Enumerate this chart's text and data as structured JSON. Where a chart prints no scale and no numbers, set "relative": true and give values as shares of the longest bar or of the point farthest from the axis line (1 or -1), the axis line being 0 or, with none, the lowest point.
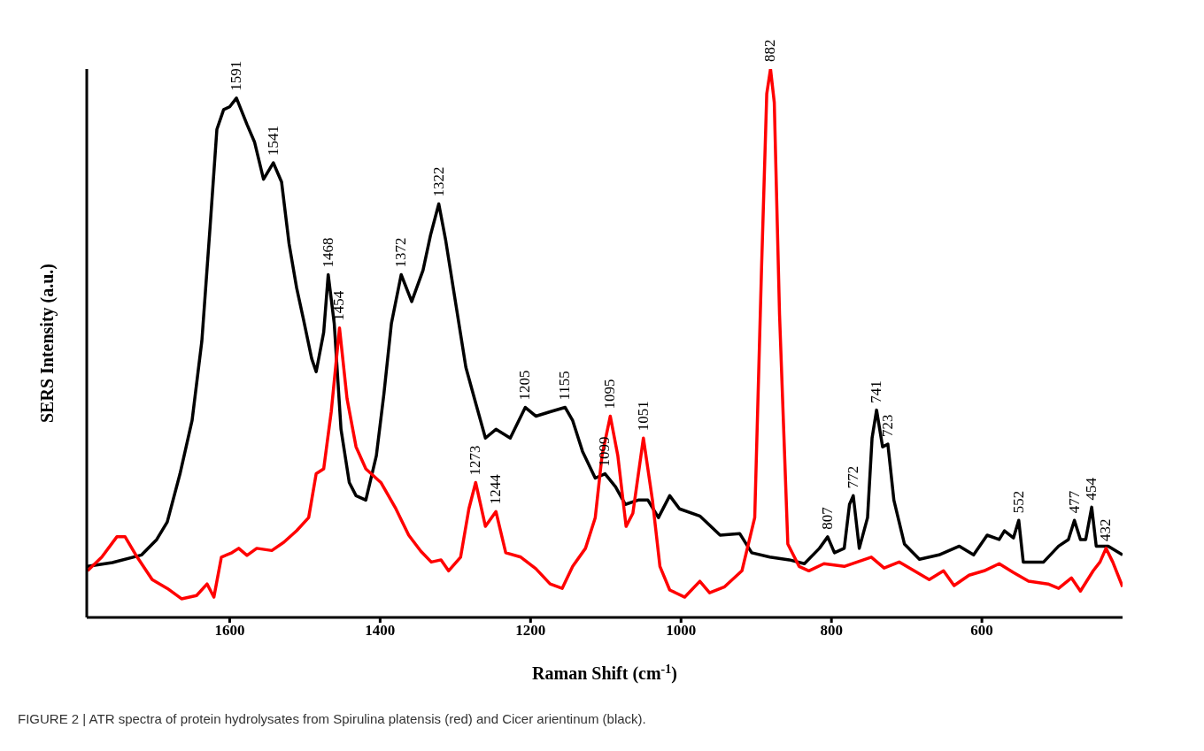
{
  "chart_data": {
    "type": "line",
    "relative": true,
    "xlabel": "Raman Shift (cm$^{-1}$)",
    "ylabel": "SERS Intensity (a.u.)",
    "xlim": [
      1790,
      413
    ],
    "xticks": [
      1600,
      1400,
      1200,
      1000,
      800,
      600
    ],
    "marker": "none",
    "line_style": "solid",
    "series": [
      {
        "color": "#000000",
        "x": [
          1789,
          1756,
          1717,
          1697,
          1683,
          1666,
          1650,
          1637,
          1626,
          1617,
          1608,
          1600,
          1591,
          1577,
          1567,
          1555,
          1542,
          1531,
          1521,
          1511,
          1502,
          1491,
          1485,
          1475,
          1469,
          1461,
          1452,
          1441,
          1432,
          1419,
          1405,
          1395,
          1385,
          1372,
          1358,
          1343,
          1333,
          1322,
          1313,
          1299,
          1286,
          1273,
          1260,
          1246,
          1227,
          1207,
          1193,
          1174,
          1154,
          1144,
          1131,
          1114,
          1101,
          1087,
          1074,
          1057,
          1044,
          1030,
          1015,
          1002,
          975,
          948,
          922,
          906,
          882,
          856,
          836,
          816,
          805,
          796,
          783,
          776,
          771,
          763,
          752,
          746,
          740,
          732,
          725,
          717,
          703,
          683,
          657,
          630,
          611,
          593,
          577,
          570,
          558,
          551,
          545,
          518,
          498,
          485,
          477,
          469,
          462,
          454,
          448,
          432,
          413
        ],
        "values": [
          0.093,
          0.1,
          0.114,
          0.142,
          0.174,
          0.262,
          0.359,
          0.504,
          0.713,
          0.89,
          0.926,
          0.931,
          0.947,
          0.899,
          0.867,
          0.799,
          0.829,
          0.794,
          0.681,
          0.601,
          0.544,
          0.472,
          0.448,
          0.52,
          0.625,
          0.536,
          0.343,
          0.246,
          0.222,
          0.214,
          0.295,
          0.407,
          0.536,
          0.625,
          0.576,
          0.633,
          0.697,
          0.754,
          0.689,
          0.568,
          0.456,
          0.391,
          0.327,
          0.343,
          0.327,
          0.383,
          0.367,
          0.375,
          0.383,
          0.359,
          0.303,
          0.254,
          0.262,
          0.238,
          0.206,
          0.214,
          0.214,
          0.182,
          0.222,
          0.198,
          0.185,
          0.15,
          0.153,
          0.118,
          0.11,
          0.105,
          0.098,
          0.126,
          0.147,
          0.118,
          0.126,
          0.206,
          0.222,
          0.126,
          0.182,
          0.327,
          0.378,
          0.311,
          0.316,
          0.214,
          0.134,
          0.106,
          0.114,
          0.13,
          0.114,
          0.15,
          0.142,
          0.158,
          0.145,
          0.177,
          0.101,
          0.101,
          0.13,
          0.142,
          0.177,
          0.142,
          0.142,
          0.201,
          0.13,
          0.13,
          0.114
        ]
      },
      {
        "color": "#ff0000",
        "x": [
          1789,
          1770,
          1750,
          1739,
          1723,
          1703,
          1683,
          1664,
          1644,
          1630,
          1621,
          1611,
          1597,
          1588,
          1577,
          1564,
          1544,
          1528,
          1511,
          1495,
          1485,
          1475,
          1465,
          1454,
          1444,
          1432,
          1419,
          1399,
          1379,
          1362,
          1346,
          1332,
          1319,
          1309,
          1293,
          1282,
          1273,
          1260,
          1246,
          1233,
          1213,
          1193,
          1174,
          1158,
          1144,
          1127,
          1114,
          1105,
          1094,
          1084,
          1073,
          1064,
          1050,
          1038,
          1028,
          1015,
          995,
          975,
          962,
          942,
          919,
          902,
          893,
          886,
          881,
          876,
          869,
          858,
          843,
          830,
          810,
          783,
          747,
          730,
          710,
          690,
          670,
          651,
          637,
          617,
          597,
          577,
          558,
          538,
          512,
          498,
          481,
          469,
          452,
          443,
          435,
          426,
          413
        ],
        "values": [
          0.085,
          0.11,
          0.147,
          0.147,
          0.11,
          0.069,
          0.053,
          0.034,
          0.04,
          0.061,
          0.037,
          0.11,
          0.118,
          0.126,
          0.113,
          0.126,
          0.122,
          0.137,
          0.158,
          0.182,
          0.262,
          0.271,
          0.375,
          0.528,
          0.399,
          0.311,
          0.271,
          0.246,
          0.198,
          0.15,
          0.121,
          0.101,
          0.105,
          0.085,
          0.11,
          0.198,
          0.246,
          0.166,
          0.193,
          0.118,
          0.11,
          0.089,
          0.061,
          0.053,
          0.093,
          0.126,
          0.182,
          0.295,
          0.367,
          0.295,
          0.166,
          0.19,
          0.327,
          0.214,
          0.093,
          0.05,
          0.037,
          0.066,
          0.045,
          0.056,
          0.085,
          0.182,
          0.633,
          0.955,
          1.0,
          0.939,
          0.552,
          0.134,
          0.093,
          0.085,
          0.098,
          0.093,
          0.11,
          0.09,
          0.101,
          0.085,
          0.069,
          0.085,
          0.058,
          0.077,
          0.085,
          0.098,
          0.082,
          0.066,
          0.061,
          0.053,
          0.072,
          0.048,
          0.085,
          0.101,
          0.126,
          0.101,
          0.056
        ]
      }
    ],
    "annotations": [
      {
        "text": "1591",
        "x": 1591,
        "y": 0.947
      },
      {
        "text": "1541",
        "x": 1542,
        "y": 0.829
      },
      {
        "text": "1468",
        "x": 1469,
        "y": 0.625
      },
      {
        "text": "1454",
        "x": 1454,
        "y": 0.528
      },
      {
        "text": "1372",
        "x": 1372,
        "y": 0.625
      },
      {
        "text": "1322",
        "x": 1322,
        "y": 0.754
      },
      {
        "text": "1273",
        "x": 1273,
        "y": 0.246
      },
      {
        "text": "1244",
        "x": 1246,
        "y": 0.193
      },
      {
        "text": "1205",
        "x": 1207,
        "y": 0.383
      },
      {
        "text": "1155",
        "x": 1154,
        "y": 0.383
      },
      {
        "text": "1099",
        "x": 1101,
        "y": 0.262
      },
      {
        "text": "1095",
        "x": 1094,
        "y": 0.367
      },
      {
        "text": "1051",
        "x": 1050,
        "y": 0.327
      },
      {
        "text": "882",
        "x": 881,
        "y": 1.0
      },
      {
        "text": "807",
        "x": 805,
        "y": 0.147
      },
      {
        "text": "772",
        "x": 771,
        "y": 0.222
      },
      {
        "text": "741",
        "x": 740,
        "y": 0.378
      },
      {
        "text": "723",
        "x": 725,
        "y": 0.316
      },
      {
        "text": "552",
        "x": 551,
        "y": 0.177
      },
      {
        "text": "477",
        "x": 477,
        "y": 0.177
      },
      {
        "text": "454",
        "x": 454,
        "y": 0.201
      },
      {
        "text": "432",
        "x": 435,
        "y": 0.126
      },
      "FIGURE 2 | ATR spectra of protein hydrolysates from Spirulina platensis (red) and Cicer arientinum (black)."
    ]
  }
}
